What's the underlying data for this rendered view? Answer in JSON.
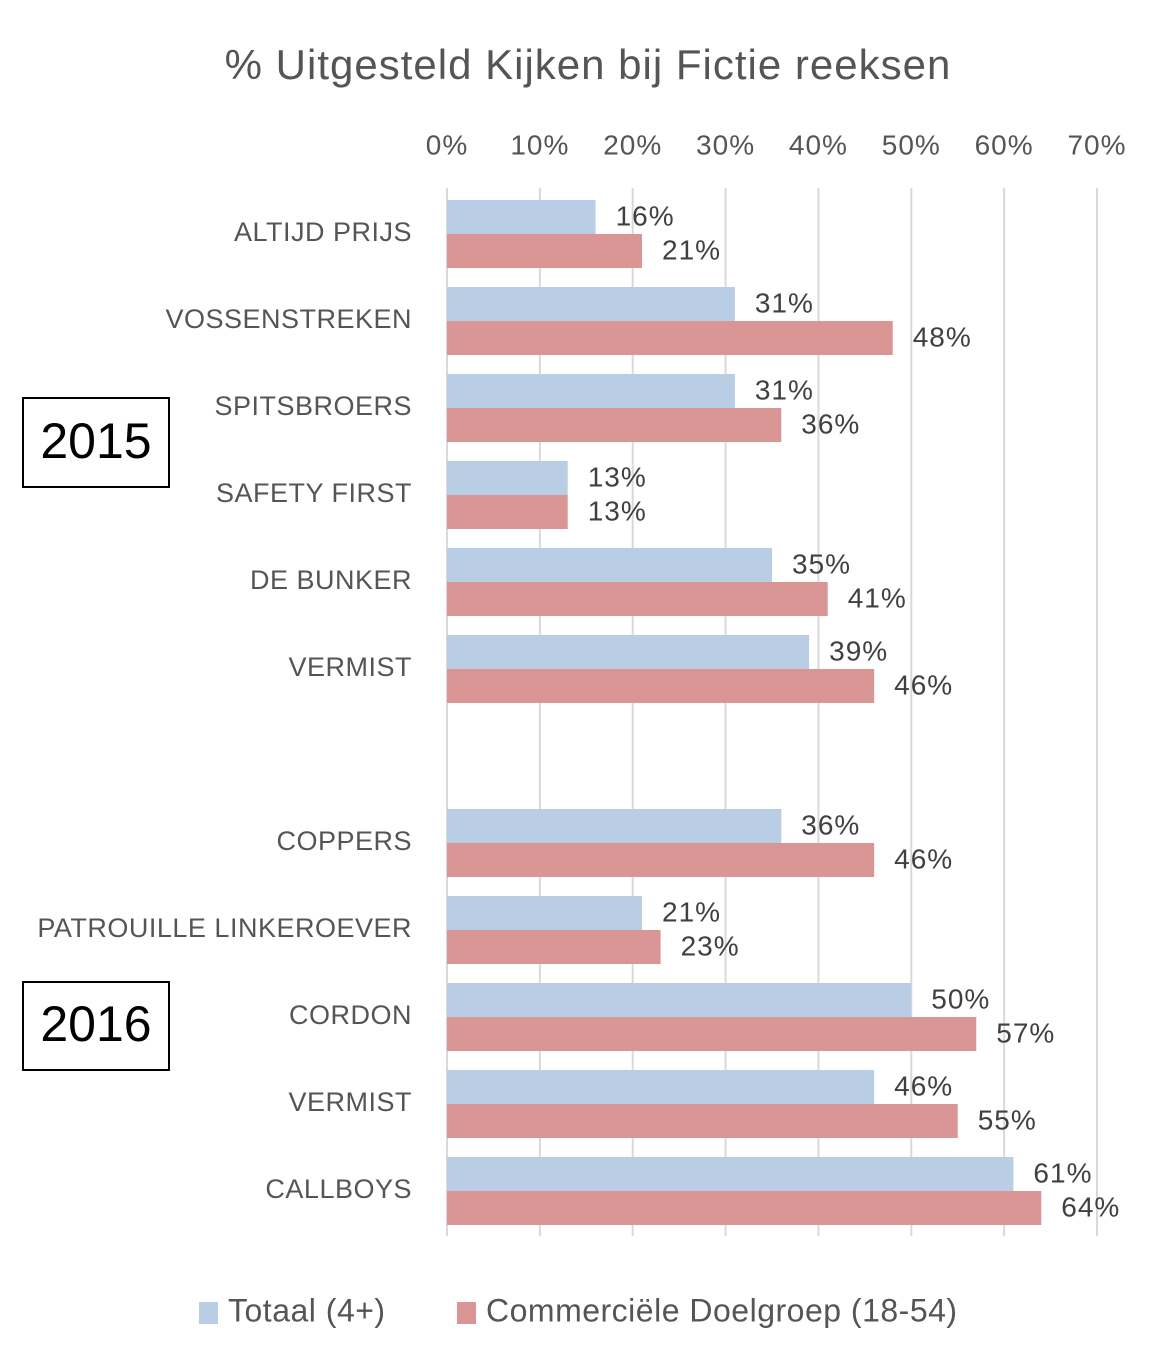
{
  "chart_data": {
    "type": "bar",
    "orientation": "horizontal",
    "title": "% Uitgesteld Kijken bij Fictie reeksen",
    "categories": [
      "ALTIJD PRIJS",
      "VOSSENSTREKEN",
      "SPITSBROERS",
      "SAFETY  FIRST",
      "DE BUNKER",
      "VERMIST",
      null,
      "COPPERS",
      "PATROUILLE LINKEROEVER",
      "CORDON",
      "VERMIST",
      "CALLBOYS"
    ],
    "series": [
      {
        "name": "Totaal (4+)",
        "color": "#b9cde5",
        "values": [
          16,
          31,
          31,
          13,
          35,
          39,
          null,
          36,
          21,
          50,
          46,
          61
        ],
        "value_labels": [
          "16%",
          "31%",
          "31%",
          "13%",
          "35%",
          "39%",
          null,
          "36%",
          "21%",
          "50%",
          "46%",
          "61%"
        ]
      },
      {
        "name": "Commerciële Doelgroep  (18-54)",
        "color": "#d99694",
        "values": [
          21,
          48,
          36,
          13,
          41,
          46,
          null,
          46,
          23,
          57,
          55,
          64
        ],
        "value_labels": [
          "21%",
          "48%",
          "36%",
          "13%",
          "41%",
          "46%",
          null,
          "46%",
          "23%",
          "57%",
          "55%",
          "64%"
        ]
      }
    ],
    "xlim": [
      0,
      70
    ],
    "xticks": [
      {
        "value": 0,
        "label": "0%"
      },
      {
        "value": 10,
        "label": "10%"
      },
      {
        "value": 20,
        "label": "20%"
      },
      {
        "value": 30,
        "label": "30%"
      },
      {
        "value": 40,
        "label": "40%"
      },
      {
        "value": 50,
        "label": "50%"
      },
      {
        "value": 60,
        "label": "60%"
      },
      {
        "value": 70,
        "label": "70%"
      }
    ],
    "grid": true,
    "legend": "bottom",
    "annotations": [
      "2015",
      "2016"
    ]
  }
}
